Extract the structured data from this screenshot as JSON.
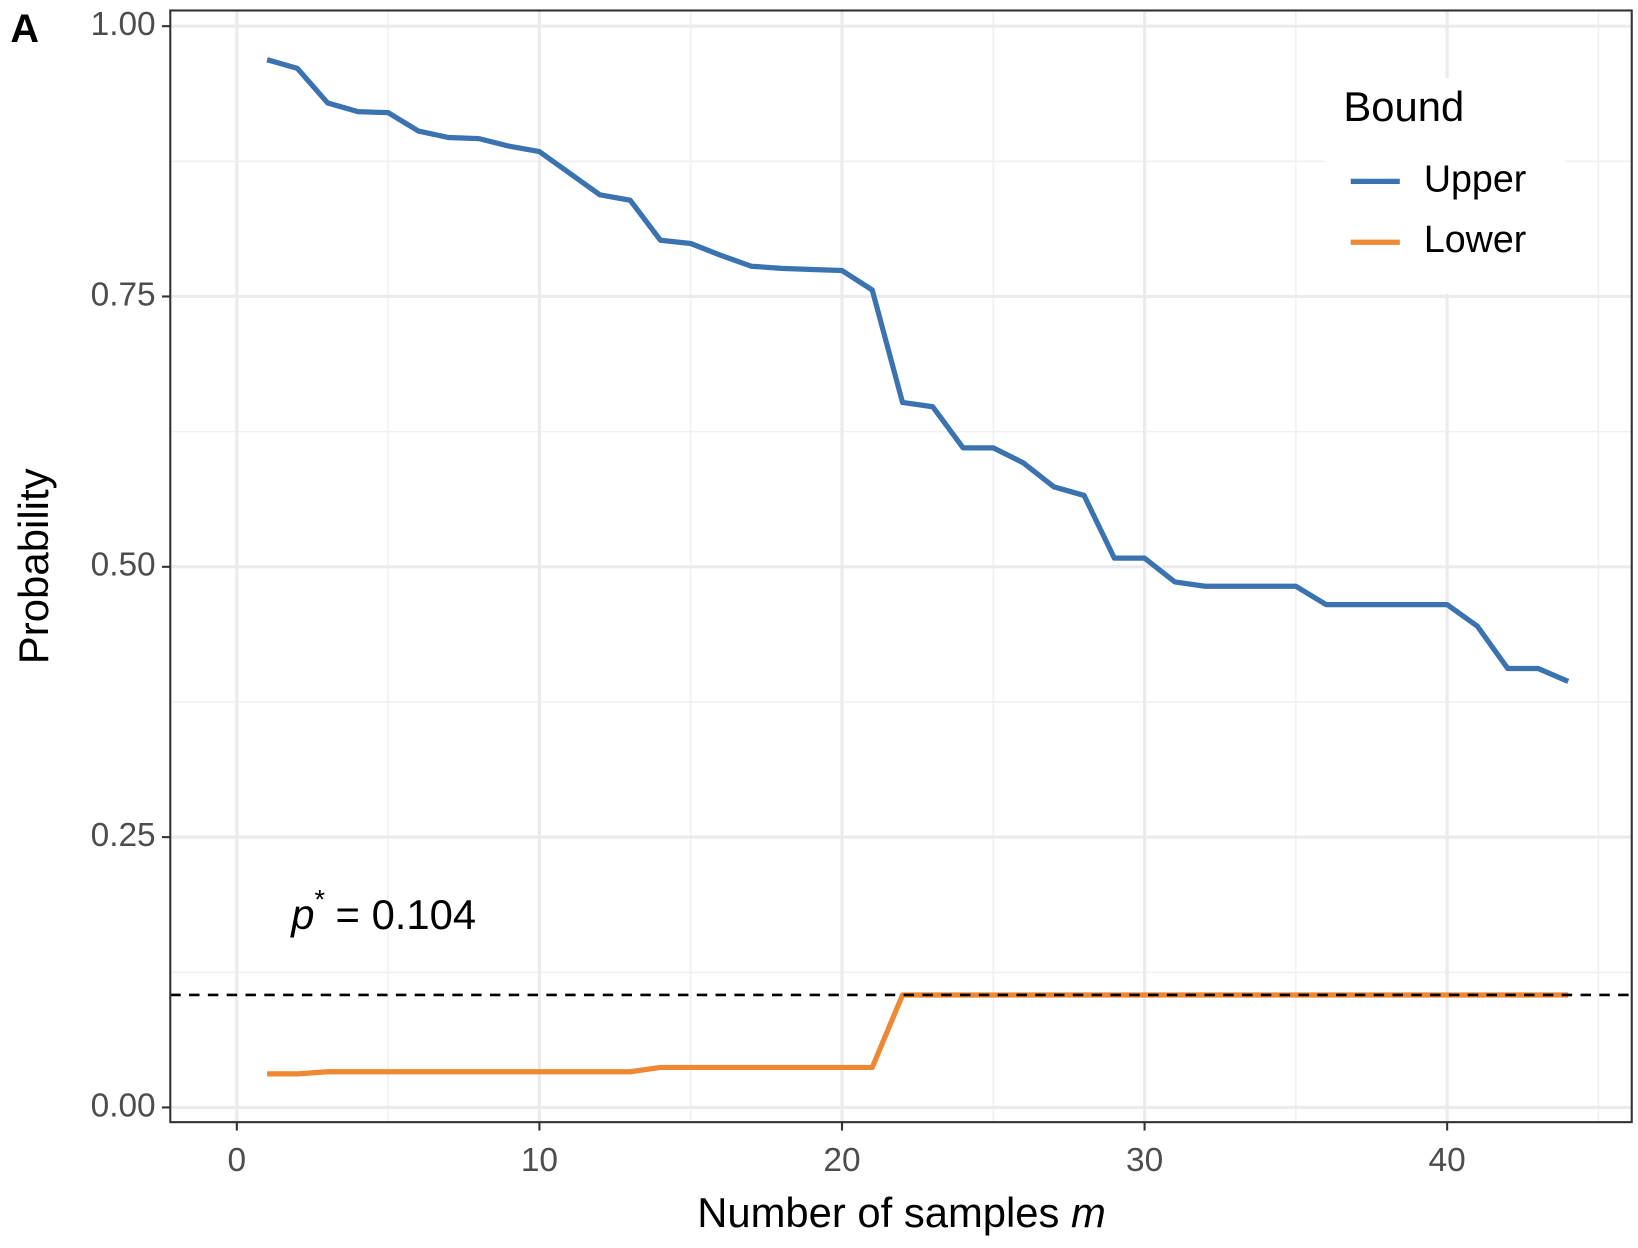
{
  "chart_data": {
    "type": "line",
    "panel_label": "A",
    "xlabel": {
      "text": "Number of samples",
      "variable": "m"
    },
    "ylabel": "Probability",
    "x": [
      1,
      2,
      3,
      4,
      5,
      6,
      7,
      8,
      9,
      10,
      11,
      12,
      13,
      14,
      15,
      16,
      17,
      18,
      19,
      20,
      21,
      22,
      23,
      24,
      25,
      26,
      27,
      28,
      29,
      30,
      31,
      32,
      33,
      34,
      35,
      36,
      37,
      38,
      39,
      40,
      41,
      42,
      43,
      44
    ],
    "series": [
      {
        "name": "Upper",
        "color": "#3b73b0",
        "values": [
          0.969,
          0.961,
          0.929,
          0.921,
          0.92,
          0.903,
          0.897,
          0.896,
          0.889,
          0.884,
          0.864,
          0.844,
          0.839,
          0.802,
          0.799,
          0.788,
          0.778,
          0.776,
          0.775,
          0.774,
          0.756,
          0.652,
          0.648,
          0.61,
          0.61,
          0.596,
          0.574,
          0.566,
          0.508,
          0.508,
          0.486,
          0.482,
          0.482,
          0.482,
          0.482,
          0.465,
          0.465,
          0.465,
          0.465,
          0.465,
          0.445,
          0.406,
          0.406,
          0.394
        ]
      },
      {
        "name": "Lower",
        "color": "#ee8833",
        "values": [
          0.031,
          0.031,
          0.033,
          0.033,
          0.033,
          0.033,
          0.033,
          0.033,
          0.033,
          0.033,
          0.033,
          0.033,
          0.033,
          0.037,
          0.037,
          0.037,
          0.037,
          0.037,
          0.037,
          0.037,
          0.037,
          0.104,
          0.104,
          0.104,
          0.104,
          0.104,
          0.104,
          0.104,
          0.104,
          0.104,
          0.104,
          0.104,
          0.104,
          0.104,
          0.104,
          0.104,
          0.104,
          0.104,
          0.104,
          0.104,
          0.104,
          0.104,
          0.104,
          0.104
        ]
      }
    ],
    "hline": 0.104,
    "annotation": {
      "symbol": "p",
      "superscript": "*",
      "text": "= 0.104"
    },
    "legend_title": "Bound",
    "legend_position": "top-right",
    "xlim": [
      -2.2,
      46.1
    ],
    "ylim": [
      -0.0136,
      1.0145
    ],
    "xticks": [
      0,
      10,
      20,
      30,
      40
    ],
    "yticks": [
      {
        "value": 0,
        "label": "0.00"
      },
      {
        "value": 0.25,
        "label": "0.25"
      },
      {
        "value": 0.5,
        "label": "0.50"
      },
      {
        "value": 0.75,
        "label": "0.75"
      },
      {
        "value": 1,
        "label": "1.00"
      }
    ],
    "grid": true,
    "minor_grid": true
  }
}
